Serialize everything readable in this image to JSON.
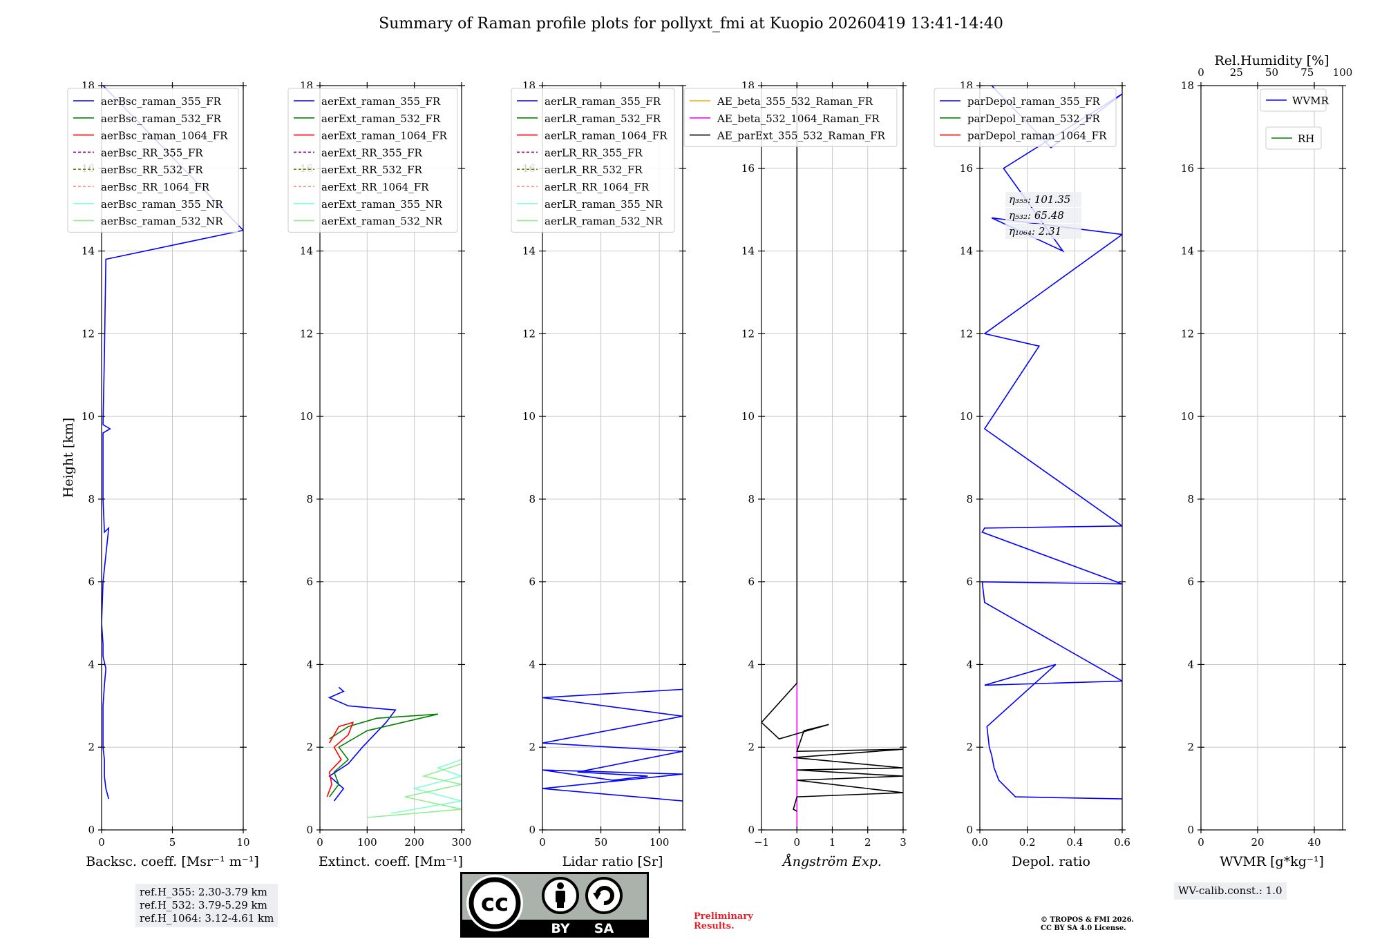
{
  "title": "Summary of Raman profile plots for pollyxt_fmi at Kuopio 20260419 13:41-14:40",
  "colors": {
    "blue": "#0000ff",
    "green": "#008000",
    "red": "#ff0000",
    "purple": "#800080",
    "olive": "#808000",
    "salmon": "#fa8072",
    "cyan": "#7fffd4",
    "lightgreen": "#90ee90",
    "orange": "#ffa500",
    "magenta": "#ff00ff",
    "black": "#000000"
  },
  "chart_data": [
    {
      "type": "line",
      "id": "bsc",
      "xlabel": "Backsc. coeff. [Msr⁻¹ m⁻¹]",
      "ylabel": "Height [km]",
      "xlim": [
        0,
        10
      ],
      "ylim": [
        0,
        18
      ],
      "xticks": [
        "0",
        "5",
        "10"
      ],
      "yticks": [
        "0",
        "2",
        "4",
        "6",
        "8",
        "10",
        "12",
        "14",
        "16",
        "18"
      ],
      "legend": [
        "aerBsc_raman_355_FR",
        "aerBsc_raman_532_FR",
        "aerBsc_raman_1064_FR",
        "aerBsc_RR_355_FR",
        "aerBsc_RR_532_FR",
        "aerBsc_RR_1064_FR",
        "aerBsc_raman_355_NR",
        "aerBsc_raman_532_NR"
      ],
      "series": [
        {
          "name": "aerBsc_raman_355_FR",
          "x": [
            0.5,
            0.3,
            0.2,
            0.2,
            0.1,
            0.1,
            0.1,
            0.2,
            0.3,
            0.1,
            0.1,
            0.0,
            0.1,
            0.5,
            0.2,
            0.1,
            0.1,
            0.1,
            0.6,
            0.1,
            0.2,
            0.3,
            10,
            0.1
          ],
          "y": [
            0.75,
            1.0,
            1.3,
            1.7,
            2.0,
            2.5,
            3.0,
            3.5,
            3.9,
            4.2,
            4.5,
            5.0,
            6.0,
            7.3,
            7.2,
            8.0,
            9.0,
            9.6,
            9.7,
            9.8,
            11.5,
            13.8,
            14.5,
            18
          ]
        }
      ]
    },
    {
      "type": "line",
      "id": "ext",
      "xlabel": "Extinct. coeff. [Mm⁻¹]",
      "xlim": [
        0,
        300
      ],
      "ylim": [
        0,
        18
      ],
      "xticks": [
        "0",
        "100",
        "200",
        "300"
      ],
      "legend": [
        "aerExt_raman_355_FR",
        "aerExt_raman_532_FR",
        "aerExt_raman_1064_FR",
        "aerExt_RR_355_FR",
        "aerExt_RR_532_FR",
        "aerExt_RR_1064_FR",
        "aerExt_raman_355_NR",
        "aerExt_raman_532_NR"
      ],
      "series": [
        {
          "name": "aerExt_raman_355_FR",
          "x": [
            30,
            50,
            20,
            60,
            90,
            140,
            160,
            60,
            40,
            20,
            50,
            40
          ],
          "y": [
            0.7,
            1.0,
            1.3,
            1.6,
            2.0,
            2.6,
            2.9,
            3.0,
            3.1,
            3.2,
            3.35,
            3.45
          ]
        },
        {
          "name": "aerExt_raman_532_FR",
          "x": [
            20,
            40,
            30,
            60,
            40,
            100,
            250,
            120,
            60,
            20
          ],
          "y": [
            0.8,
            1.1,
            1.4,
            1.7,
            2.0,
            2.4,
            2.8,
            2.7,
            2.5,
            2.2
          ]
        },
        {
          "name": "aerExt_raman_1064_FR",
          "x": [
            15,
            25,
            20,
            45,
            30,
            60,
            70,
            40,
            20
          ],
          "y": [
            0.8,
            1.1,
            1.4,
            1.7,
            2.0,
            2.3,
            2.6,
            2.5,
            2.1
          ]
        },
        {
          "name": "aerExt_raman_355_NR",
          "x": [
            150,
            300,
            200,
            300,
            250,
            300
          ],
          "y": [
            0.4,
            0.7,
            1.0,
            1.3,
            1.5,
            1.7
          ]
        },
        {
          "name": "aerExt_raman_532_NR",
          "x": [
            100,
            300,
            180,
            300,
            220,
            300
          ],
          "y": [
            0.3,
            0.5,
            0.8,
            1.1,
            1.3,
            1.6
          ]
        }
      ]
    },
    {
      "type": "line",
      "id": "lr",
      "xlabel": "Lidar ratio [Sr]",
      "xlim": [
        0,
        120
      ],
      "ylim": [
        0,
        18
      ],
      "xticks": [
        "0",
        "50",
        "100"
      ],
      "legend": [
        "aerLR_raman_355_FR",
        "aerLR_raman_532_FR",
        "aerLR_raman_1064_FR",
        "aerLR_RR_355_FR",
        "aerLR_RR_532_FR",
        "aerLR_RR_1064_FR",
        "aerLR_raman_355_NR",
        "aerLR_raman_532_NR"
      ],
      "series": [
        {
          "name": "aerLR_raman_355_FR",
          "x": [
            120,
            0,
            120,
            0,
            60,
            90,
            30,
            120,
            0,
            120,
            0,
            120
          ],
          "y": [
            0.7,
            1.0,
            1.35,
            1.45,
            1.2,
            1.3,
            1.4,
            1.9,
            2.1,
            2.75,
            3.2,
            3.4
          ]
        }
      ]
    },
    {
      "type": "line",
      "id": "ae",
      "xlabel": "Ångström Exp.",
      "xlim": [
        -1,
        3
      ],
      "ylim": [
        0,
        18
      ],
      "xticks": [
        "−1",
        "0",
        "1",
        "2",
        "3"
      ],
      "legend": [
        "AE_beta_355_532_Raman_FR",
        "AE_beta_532_1064_Raman_FR",
        "AE_parExt_355_532_Raman_FR"
      ],
      "series": [
        {
          "name": "AE_beta_532_1064_Raman_FR",
          "x": [
            0,
            0
          ],
          "y": [
            0,
            3.6
          ]
        },
        {
          "name": "AE_parExt_355_532_Raman_FR",
          "x": [
            0,
            -0.1,
            0,
            3,
            0,
            3,
            0,
            3,
            -0.1,
            3,
            0,
            0.2,
            0.9,
            -0.5,
            -1,
            0,
            0
          ],
          "y": [
            0.45,
            0.5,
            0.8,
            0.9,
            1.2,
            1.3,
            1.45,
            1.5,
            1.75,
            1.95,
            1.9,
            2.4,
            2.55,
            2.2,
            2.6,
            3.55,
            18
          ]
        }
      ]
    },
    {
      "type": "line",
      "id": "depol",
      "xlabel": "Depol. ratio",
      "xlim": [
        0,
        0.6
      ],
      "ylim": [
        0,
        18
      ],
      "xticks": [
        "0.0",
        "0.2",
        "0.4",
        "0.6"
      ],
      "legend": [
        "parDepol_raman_355_FR",
        "parDepol_raman_532_FR",
        "parDepol_raman_1064_FR"
      ],
      "annotations": [
        "η₃₅₅: 101.35",
        "η₅₃₂: 65.48",
        "η₁₀₆₄: 2.31"
      ],
      "series": [
        {
          "name": "parDepol_raman_355_FR",
          "x": [
            0.6,
            0.15,
            0.08,
            0.06,
            0.05,
            0.04,
            0.03,
            0.32,
            0.02,
            0.6,
            0.02,
            0.01,
            0.6,
            0.01,
            0.02,
            0.6,
            0.02,
            0.25,
            0.02,
            0.6,
            0.05,
            0.35,
            0.1,
            0.6,
            0.3,
            0.05
          ],
          "y": [
            0.75,
            0.8,
            1.2,
            1.5,
            1.8,
            2.0,
            2.5,
            4.0,
            3.5,
            3.6,
            5.5,
            6.0,
            5.95,
            7.2,
            7.3,
            7.35,
            9.7,
            11.7,
            12.0,
            14.4,
            14.8,
            14.0,
            16.0,
            17.8,
            16.5,
            18
          ]
        }
      ]
    },
    {
      "type": "line",
      "id": "wv",
      "xlabel": "WVMR [g*kg⁻¹]",
      "x2label": "Rel.Humidity [%]",
      "xlim": [
        0,
        50
      ],
      "ylim": [
        0,
        18
      ],
      "xticks": [
        "0",
        "20",
        "40"
      ],
      "x2ticks": [
        "0",
        "25",
        "50",
        "75",
        "100"
      ],
      "legend": [
        "WVMR",
        "RH"
      ],
      "series": []
    }
  ],
  "refs": [
    "ref.H_355: 2.30-3.79 km",
    "ref.H_532: 3.79-5.29 km",
    "ref.H_1064: 3.12-4.61 km"
  ],
  "wv_calib": "WV-calib.const.: 1.0",
  "license_badge": {
    "cc": "cc",
    "by": "BY",
    "sa": "SA"
  },
  "preliminary": [
    "Preliminary",
    "Results."
  ],
  "copyright": [
    "© TROPOS & FMI 2026.",
    "CC BY SA 4.0 License."
  ]
}
